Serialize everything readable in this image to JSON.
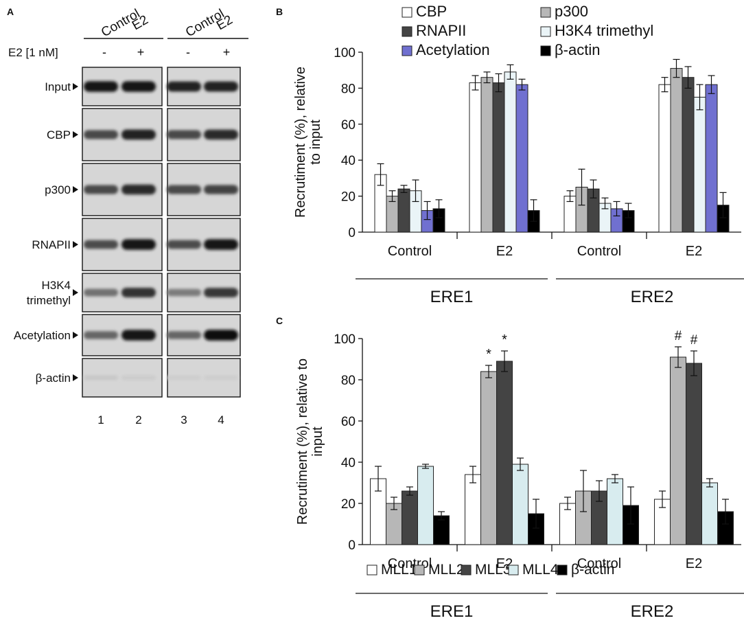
{
  "panel_a": {
    "label": "A",
    "conditions": [
      "Control",
      "E2",
      "Control",
      "E2"
    ],
    "treatment_label": "E2 [1 nM]",
    "treatment_signs": [
      "-",
      "+",
      "-",
      "+"
    ],
    "rows": [
      {
        "label": "Input",
        "band": [
          0.95,
          0.95,
          0.88,
          0.88
        ]
      },
      {
        "label": "CBP",
        "band": [
          0.7,
          0.88,
          0.7,
          0.85
        ]
      },
      {
        "label": "p300",
        "band": [
          0.7,
          0.85,
          0.7,
          0.72
        ]
      },
      {
        "label": "RNAPII",
        "band": [
          0.68,
          0.95,
          0.68,
          0.95
        ]
      },
      {
        "label": "H3K4\ntrimethyl",
        "band": [
          0.5,
          0.8,
          0.45,
          0.78
        ]
      },
      {
        "label": "Acetylation",
        "band": [
          0.55,
          0.95,
          0.55,
          0.97
        ]
      },
      {
        "label": "β-actin",
        "band": [
          0.08,
          0.06,
          0.05,
          0.05
        ]
      }
    ],
    "lane_numbers": [
      "1",
      "2",
      "3",
      "4"
    ]
  },
  "colors": {
    "CBP": "#ffffff",
    "p300": "#b7b7b7",
    "RNAPII": "#444444",
    "H3K4": "#eaf4f7",
    "Acetylation": "#7070d0",
    "actin": "#000000",
    "MLL1": "#ffffff",
    "MLL2": "#b7b7b7",
    "MLL3": "#444444",
    "MLL4": "#d8ecef"
  },
  "chart_data": [
    {
      "panel": "B",
      "type": "bar",
      "ylabel": "Recrutiment  (%), relative to input",
      "ylim": [
        0,
        100
      ],
      "yticks": [
        0,
        20,
        40,
        60,
        80,
        100
      ],
      "categories": [
        "Control",
        "E2",
        "Control",
        "E2"
      ],
      "groups": [
        "ERE1",
        "ERE2"
      ],
      "series": [
        {
          "name": "CBP",
          "color_key": "CBP",
          "values": [
            32,
            83,
            20,
            82
          ],
          "errors": [
            6,
            4,
            3,
            4
          ]
        },
        {
          "name": "p300",
          "color_key": "p300",
          "values": [
            20,
            86,
            25,
            91
          ],
          "errors": [
            3,
            3,
            10,
            5
          ]
        },
        {
          "name": "RNAPII",
          "color_key": "RNAPII",
          "values": [
            24,
            83,
            24,
            86
          ],
          "errors": [
            2,
            5,
            5,
            6
          ]
        },
        {
          "name": "H3K4 trimethyl",
          "color_key": "H3K4",
          "values": [
            23,
            89,
            16,
            75
          ],
          "errors": [
            6,
            4,
            3,
            7
          ]
        },
        {
          "name": "Acetylation",
          "color_key": "Acetylation",
          "values": [
            12,
            82,
            13,
            82
          ],
          "errors": [
            5,
            3,
            4,
            5
          ]
        },
        {
          "name": "β-actin",
          "color_key": "actin",
          "values": [
            13,
            12,
            12,
            15
          ],
          "errors": [
            5,
            6,
            4,
            7
          ]
        }
      ],
      "annotations": [],
      "legend": [
        "CBP",
        "p300",
        "RNAPII",
        "H3K4 trimethyl",
        "Acetylation",
        "β-actin"
      ]
    },
    {
      "panel": "C",
      "type": "bar",
      "ylabel": "Recrutiment  (%), relative to input",
      "ylim": [
        0,
        100
      ],
      "yticks": [
        0,
        20,
        40,
        60,
        80,
        100
      ],
      "categories": [
        "Control",
        "E2",
        "Control",
        "E2"
      ],
      "groups": [
        "ERE1",
        "ERE2"
      ],
      "series": [
        {
          "name": "MLL1",
          "color_key": "MLL1",
          "values": [
            32,
            34,
            20,
            22
          ],
          "errors": [
            6,
            4,
            3,
            4
          ]
        },
        {
          "name": "MLL2",
          "color_key": "MLL2",
          "values": [
            20,
            84,
            26,
            91
          ],
          "errors": [
            3,
            3,
            10,
            5
          ]
        },
        {
          "name": "MLL3",
          "color_key": "MLL3",
          "values": [
            26,
            89,
            26,
            88
          ],
          "errors": [
            2,
            5,
            5,
            6
          ]
        },
        {
          "name": "MLL4",
          "color_key": "MLL4",
          "values": [
            38,
            39,
            32,
            30
          ],
          "errors": [
            1,
            3,
            2,
            2
          ]
        },
        {
          "name": "β-actin",
          "color_key": "actin",
          "values": [
            14,
            15,
            19,
            16
          ],
          "errors": [
            2,
            7,
            9,
            6
          ]
        }
      ],
      "annotations": [
        {
          "series": 1,
          "category": 1,
          "text": "*"
        },
        {
          "series": 2,
          "category": 1,
          "text": "*"
        },
        {
          "series": 1,
          "category": 3,
          "text": "#"
        },
        {
          "series": 2,
          "category": 3,
          "text": "#"
        }
      ],
      "legend": [
        "MLL1",
        "MLL2",
        "MLL3",
        "MLL4",
        "β-actin"
      ]
    }
  ]
}
